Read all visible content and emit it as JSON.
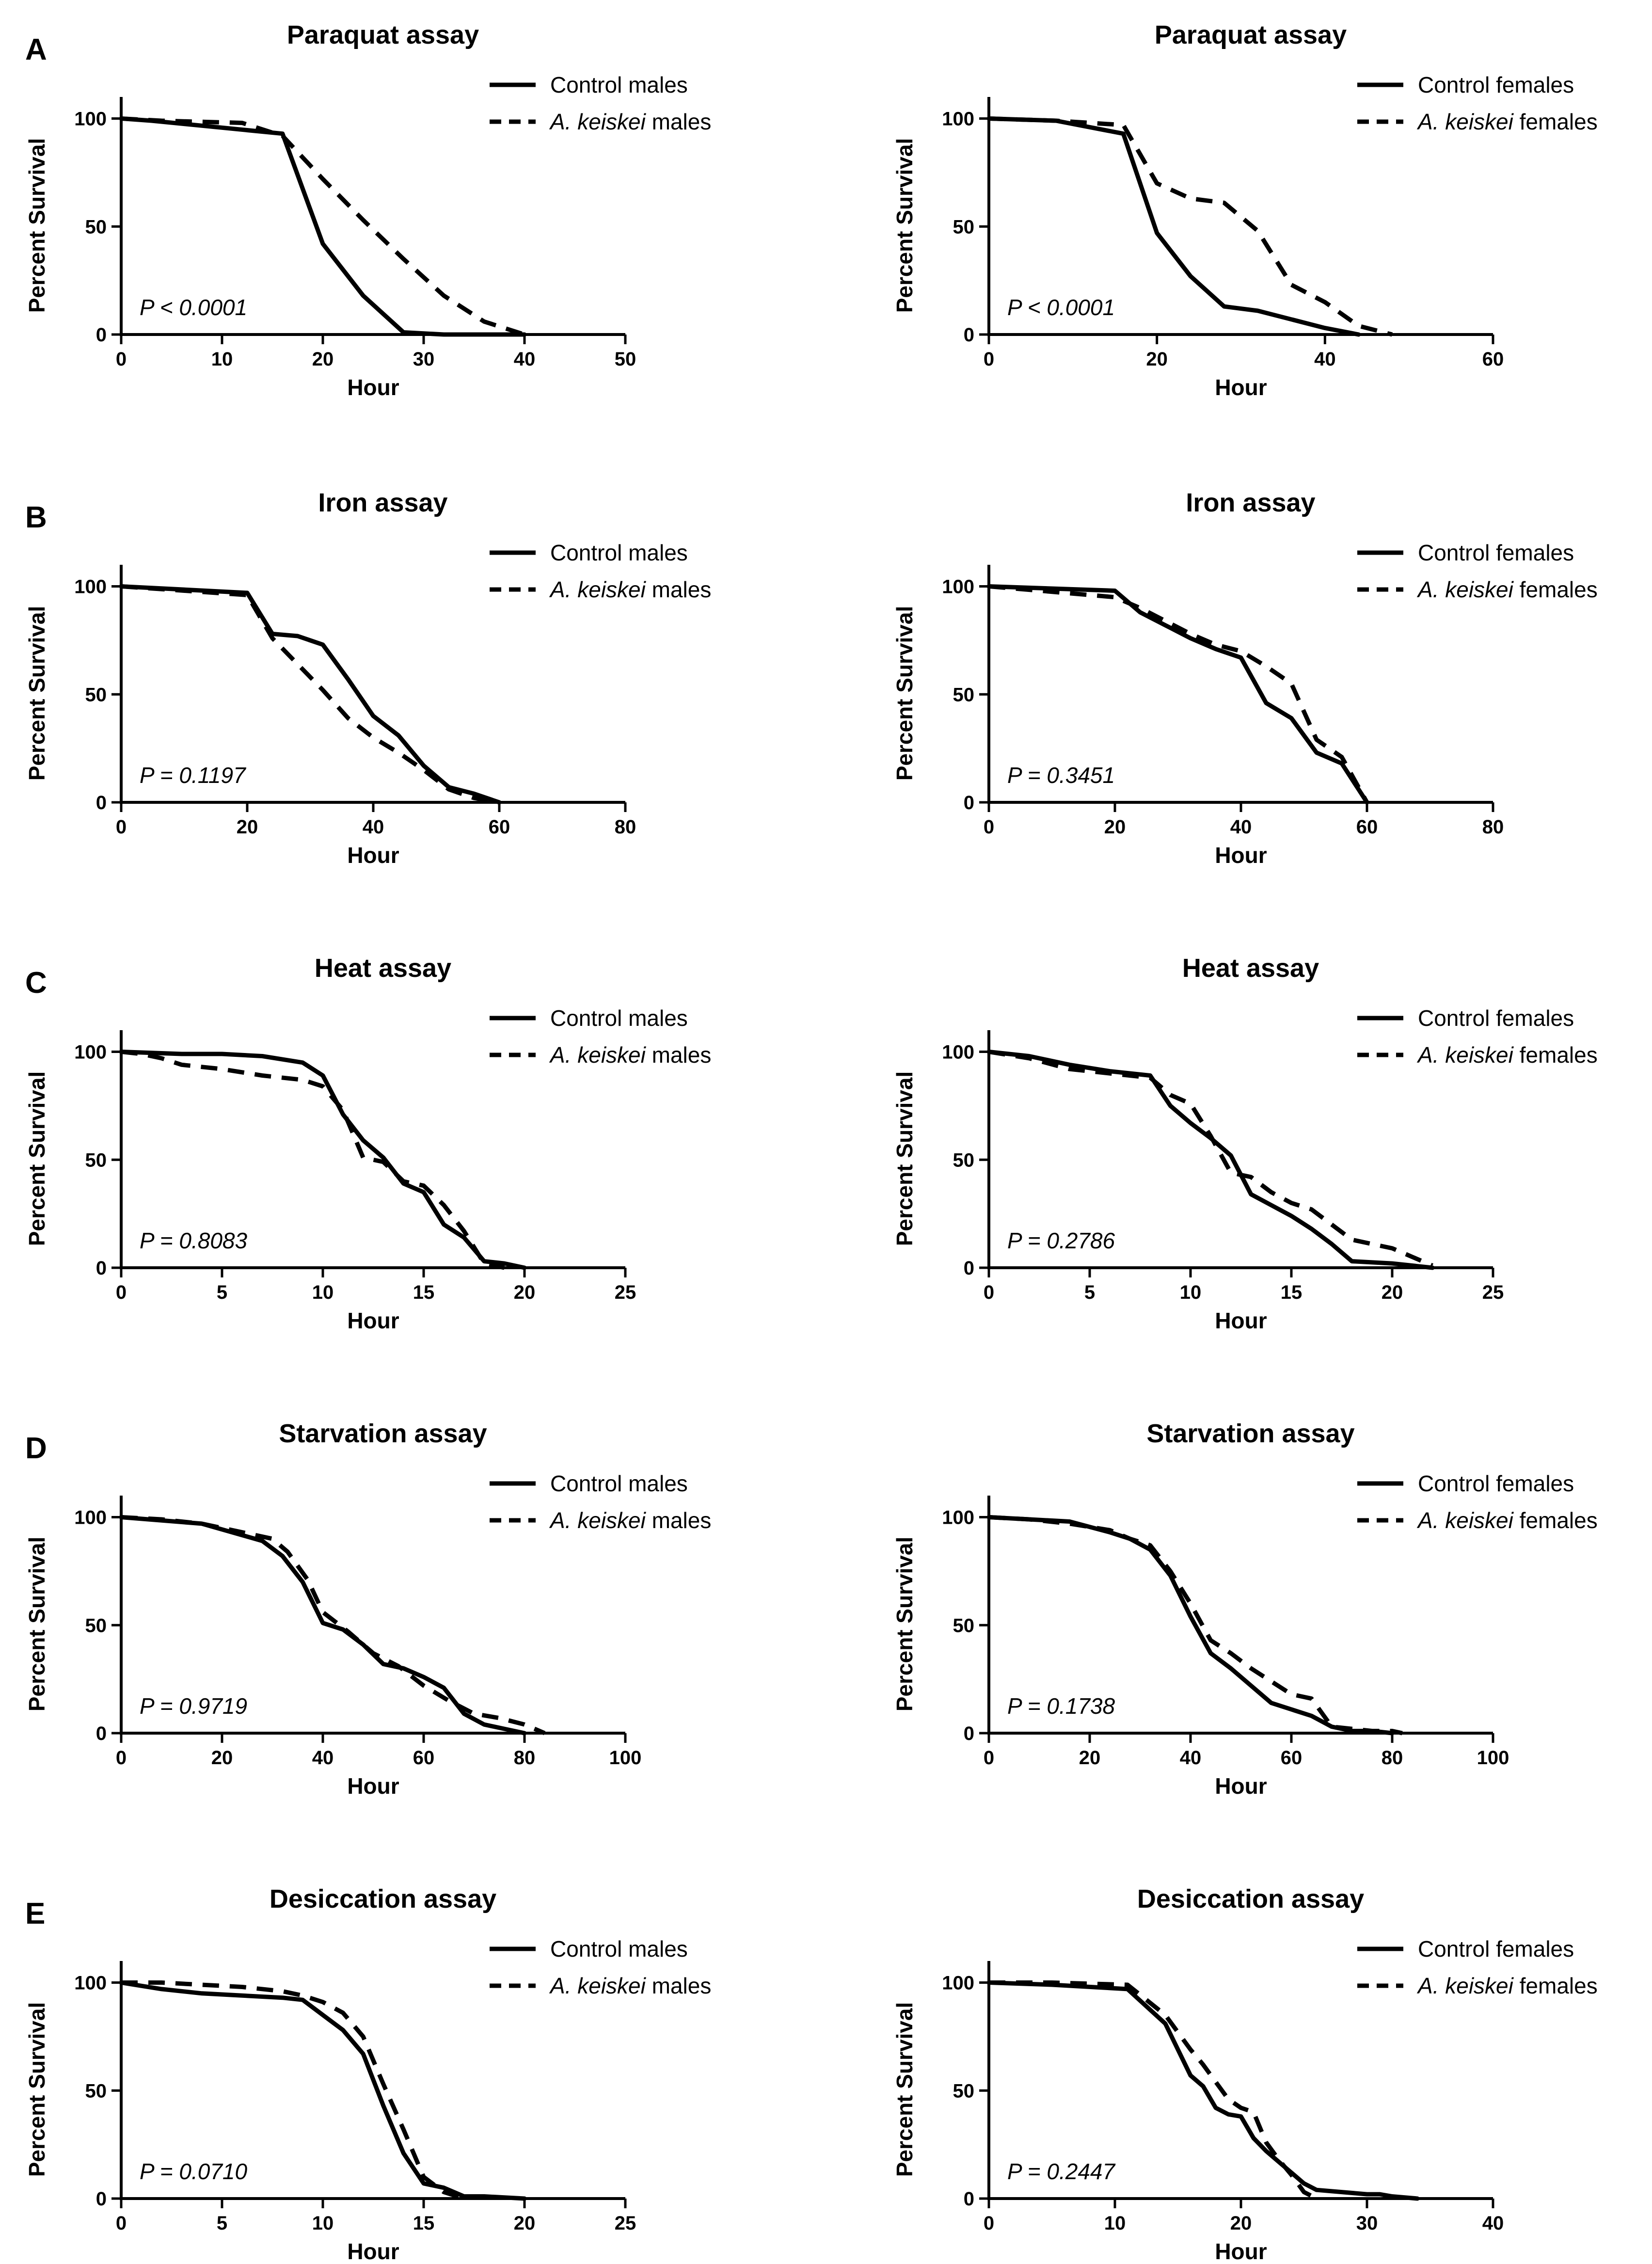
{
  "figure": {
    "row_labels": [
      "A",
      "B",
      "C",
      "D",
      "E"
    ]
  },
  "chart_data": [
    {
      "type": "line",
      "title": "Paraquat assay",
      "xlabel": "Hour",
      "ylabel": "Percent Survival",
      "xlim": [
        0,
        50
      ],
      "xticks": [
        0,
        10,
        20,
        30,
        40,
        50
      ],
      "ylim": [
        0,
        100
      ],
      "yticks": [
        0,
        50,
        100
      ],
      "pvalue": "P < 0.0001",
      "series": [
        {
          "name": "Control males",
          "style": "solid",
          "x": [
            0,
            3,
            16,
            20,
            24,
            28,
            32,
            40
          ],
          "y": [
            100,
            99,
            93,
            42,
            18,
            1,
            0,
            0
          ]
        },
        {
          "name": "A. keiskei males",
          "style": "dashed",
          "x": [
            0,
            4,
            12,
            16,
            20,
            24,
            28,
            32,
            36,
            40
          ],
          "y": [
            100,
            99,
            98,
            92,
            72,
            53,
            35,
            18,
            6,
            0
          ]
        }
      ]
    },
    {
      "type": "line",
      "title": "Paraquat assay",
      "xlabel": "Hour",
      "ylabel": "Percent Survival",
      "xlim": [
        0,
        60
      ],
      "xticks": [
        0,
        20,
        40,
        60
      ],
      "ylim": [
        0,
        100
      ],
      "yticks": [
        0,
        50,
        100
      ],
      "pvalue": "P < 0.0001",
      "series": [
        {
          "name": "Control females",
          "style": "solid",
          "x": [
            0,
            8,
            16,
            20,
            24,
            28,
            32,
            36,
            40,
            44
          ],
          "y": [
            100,
            99,
            93,
            47,
            27,
            13,
            11,
            7,
            3,
            0
          ]
        },
        {
          "name": "A. keiskei females",
          "style": "dashed",
          "x": [
            0,
            8,
            16,
            20,
            24,
            28,
            32,
            36,
            40,
            44,
            48
          ],
          "y": [
            100,
            99,
            97,
            70,
            63,
            61,
            48,
            23,
            15,
            4,
            0
          ]
        }
      ]
    },
    {
      "type": "line",
      "title": "Iron assay",
      "xlabel": "Hour",
      "ylabel": "Percent Survival",
      "xlim": [
        0,
        80
      ],
      "xticks": [
        0,
        20,
        40,
        60,
        80
      ],
      "ylim": [
        0,
        100
      ],
      "yticks": [
        0,
        50,
        100
      ],
      "pvalue": "P = 0.1197",
      "series": [
        {
          "name": "Control males",
          "style": "solid",
          "x": [
            0,
            20,
            24,
            28,
            32,
            36,
            40,
            44,
            48,
            52,
            56,
            60
          ],
          "y": [
            100,
            97,
            78,
            77,
            73,
            57,
            40,
            31,
            17,
            7,
            4,
            0
          ]
        },
        {
          "name": "A. keiskei males",
          "style": "dashed",
          "x": [
            0,
            20,
            24,
            28,
            32,
            36,
            40,
            44,
            48,
            52,
            56,
            60
          ],
          "y": [
            100,
            96,
            76,
            64,
            52,
            39,
            30,
            23,
            15,
            6,
            2,
            0
          ]
        }
      ]
    },
    {
      "type": "line",
      "title": "Iron assay",
      "xlabel": "Hour",
      "ylabel": "Percent Survival",
      "xlim": [
        0,
        80
      ],
      "xticks": [
        0,
        20,
        40,
        60,
        80
      ],
      "ylim": [
        0,
        100
      ],
      "yticks": [
        0,
        50,
        100
      ],
      "pvalue": "P = 0.3451",
      "series": [
        {
          "name": "Control females",
          "style": "solid",
          "x": [
            0,
            20,
            24,
            28,
            32,
            36,
            40,
            44,
            48,
            52,
            56,
            60
          ],
          "y": [
            100,
            98,
            88,
            82,
            76,
            71,
            67,
            46,
            39,
            23,
            18,
            0
          ]
        },
        {
          "name": "A. keiskei females",
          "style": "dashed",
          "x": [
            0,
            20,
            24,
            28,
            32,
            36,
            40,
            44,
            48,
            52,
            56,
            60
          ],
          "y": [
            100,
            95,
            90,
            84,
            78,
            73,
            70,
            63,
            55,
            29,
            21,
            0
          ]
        }
      ]
    },
    {
      "type": "line",
      "title": "Heat assay",
      "xlabel": "Hour",
      "ylabel": "Percent Survival",
      "xlim": [
        0,
        25
      ],
      "xticks": [
        0,
        5,
        10,
        15,
        20,
        25
      ],
      "ylim": [
        0,
        100
      ],
      "yticks": [
        0,
        50,
        100
      ],
      "pvalue": "P = 0.8083",
      "series": [
        {
          "name": "Control males",
          "style": "solid",
          "x": [
            0,
            3,
            5,
            7,
            9,
            10,
            11,
            12,
            13,
            14,
            15,
            16,
            17,
            18,
            19,
            20
          ],
          "y": [
            100,
            99,
            99,
            98,
            95,
            89,
            71,
            59,
            51,
            39,
            35,
            20,
            14,
            3,
            2,
            0
          ]
        },
        {
          "name": "A. keiskei males",
          "style": "dashed",
          "x": [
            0,
            1,
            2,
            3,
            5,
            7,
            9,
            10,
            11,
            12,
            13,
            14,
            15,
            16,
            17,
            18,
            19
          ],
          "y": [
            100,
            99,
            97,
            94,
            92,
            89,
            87,
            84,
            73,
            51,
            49,
            40,
            38,
            29,
            17,
            2,
            0
          ]
        }
      ]
    },
    {
      "type": "line",
      "title": "Heat assay",
      "xlabel": "Hour",
      "ylabel": "Percent Survival",
      "xlim": [
        0,
        25
      ],
      "xticks": [
        0,
        5,
        10,
        15,
        20,
        25
      ],
      "ylim": [
        0,
        100
      ],
      "yticks": [
        0,
        50,
        100
      ],
      "pvalue": "P = 0.2786",
      "series": [
        {
          "name": "Control females",
          "style": "solid",
          "x": [
            0,
            2,
            4,
            6,
            8,
            9,
            10,
            11,
            12,
            13,
            14,
            15,
            16,
            17,
            18,
            20,
            22
          ],
          "y": [
            100,
            98,
            94,
            91,
            89,
            75,
            67,
            60,
            52,
            34,
            29,
            24,
            18,
            11,
            3,
            2,
            0
          ]
        },
        {
          "name": "A. keiskei females",
          "style": "dashed",
          "x": [
            0,
            2,
            4,
            6,
            8,
            9,
            10,
            11,
            12,
            13,
            14,
            15,
            16,
            17,
            18,
            20,
            21,
            22
          ],
          "y": [
            100,
            97,
            92,
            90,
            88,
            80,
            76,
            61,
            44,
            42,
            35,
            30,
            27,
            20,
            13,
            9,
            5,
            1
          ]
        }
      ]
    },
    {
      "type": "line",
      "title": "Starvation assay",
      "xlabel": "Hour",
      "ylabel": "Percent Survival",
      "xlim": [
        0,
        100
      ],
      "xticks": [
        0,
        20,
        40,
        60,
        80,
        100
      ],
      "ylim": [
        0,
        100
      ],
      "yticks": [
        0,
        50,
        100
      ],
      "pvalue": "P = 0.9719",
      "series": [
        {
          "name": "Control males",
          "style": "solid",
          "x": [
            0,
            16,
            28,
            32,
            36,
            40,
            44,
            48,
            52,
            56,
            60,
            64,
            68,
            72,
            76,
            80
          ],
          "y": [
            100,
            97,
            89,
            82,
            70,
            51,
            48,
            41,
            32,
            30,
            26,
            21,
            9,
            4,
            2,
            0
          ]
        },
        {
          "name": "A. keiskei males",
          "style": "dashed",
          "x": [
            0,
            8,
            16,
            24,
            30,
            33,
            37,
            40,
            45,
            50,
            55,
            60,
            65,
            70,
            75,
            80,
            84
          ],
          "y": [
            100,
            99,
            97,
            93,
            90,
            84,
            71,
            56,
            47,
            37,
            31,
            22,
            15,
            9,
            7,
            4,
            0
          ]
        }
      ]
    },
    {
      "type": "line",
      "title": "Starvation assay",
      "xlabel": "Hour",
      "ylabel": "Percent Survival",
      "xlim": [
        0,
        100
      ],
      "xticks": [
        0,
        20,
        40,
        60,
        80,
        100
      ],
      "ylim": [
        0,
        100
      ],
      "yticks": [
        0,
        50,
        100
      ],
      "pvalue": "P = 0.1738",
      "series": [
        {
          "name": "Control females",
          "style": "solid",
          "x": [
            0,
            8,
            16,
            24,
            28,
            32,
            36,
            40,
            44,
            48,
            52,
            56,
            60,
            64,
            68,
            72,
            76,
            80
          ],
          "y": [
            100,
            99,
            98,
            93,
            90,
            85,
            73,
            54,
            37,
            30,
            22,
            14,
            11,
            8,
            3,
            1,
            1,
            0
          ]
        },
        {
          "name": "A. keiskei females",
          "style": "dashed",
          "x": [
            0,
            8,
            16,
            24,
            28,
            32,
            36,
            40,
            44,
            48,
            52,
            56,
            60,
            64,
            68,
            72,
            76,
            80,
            82
          ],
          "y": [
            100,
            99,
            97,
            94,
            90,
            87,
            75,
            60,
            43,
            37,
            30,
            24,
            18,
            16,
            3,
            2,
            1,
            1,
            0
          ]
        }
      ]
    },
    {
      "type": "line",
      "title": "Desiccation assay",
      "xlabel": "Hour",
      "ylabel": "Percent Survival",
      "xlim": [
        0,
        25
      ],
      "xticks": [
        0,
        5,
        10,
        15,
        20,
        25
      ],
      "ylim": [
        0,
        100
      ],
      "yticks": [
        0,
        50,
        100
      ],
      "pvalue": "P = 0.0710",
      "series": [
        {
          "name": "Control males",
          "style": "solid",
          "x": [
            0,
            2,
            4,
            6,
            8,
            9,
            10,
            11,
            12,
            13,
            14,
            15,
            16,
            17,
            18,
            20
          ],
          "y": [
            100,
            97,
            95,
            94,
            93,
            92,
            85,
            78,
            67,
            43,
            21,
            7,
            5,
            1,
            1,
            0
          ]
        },
        {
          "name": "A. keiskei males",
          "style": "dashed",
          "x": [
            0,
            2,
            4,
            6,
            8,
            9,
            10,
            11,
            12,
            13,
            14,
            15,
            16,
            17
          ],
          "y": [
            100,
            100,
            99,
            98,
            96,
            94,
            91,
            86,
            75,
            53,
            32,
            10,
            3,
            0
          ]
        }
      ]
    },
    {
      "type": "line",
      "title": "Desiccation assay",
      "xlabel": "Hour",
      "ylabel": "Percent Survival",
      "xlim": [
        0,
        40
      ],
      "xticks": [
        0,
        10,
        20,
        30,
        40
      ],
      "ylim": [
        0,
        100
      ],
      "yticks": [
        0,
        50,
        100
      ],
      "pvalue": "P = 0.2447",
      "series": [
        {
          "name": "Control females",
          "style": "solid",
          "x": [
            0,
            5,
            11,
            14,
            16,
            17,
            18,
            19,
            20,
            21,
            22,
            24,
            25,
            26,
            28,
            30,
            31,
            32,
            34
          ],
          "y": [
            100,
            99,
            97,
            81,
            57,
            52,
            42,
            39,
            38,
            28,
            22,
            12,
            7,
            4,
            3,
            2,
            2,
            1,
            0
          ]
        },
        {
          "name": "A. keiskei females",
          "style": "dashed",
          "x": [
            0,
            5,
            11,
            14,
            16,
            17,
            18,
            19,
            20,
            21,
            22,
            23,
            24,
            25,
            26
          ],
          "y": [
            100,
            100,
            99,
            85,
            69,
            62,
            54,
            46,
            42,
            40,
            26,
            18,
            11,
            3,
            0
          ]
        }
      ]
    }
  ]
}
